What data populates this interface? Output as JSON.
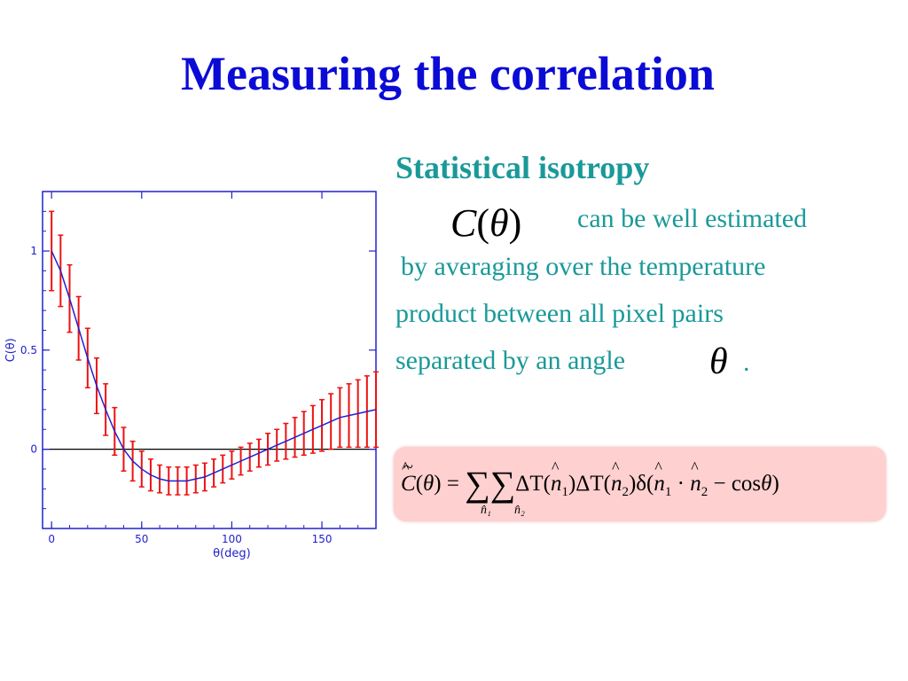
{
  "slide": {
    "title": "Measuring the correlation",
    "heading": "Statistical isotropy",
    "lines": [
      "can be well estimated",
      "by averaging over the temperature",
      "product between all pixel pairs",
      "separated by an angle"
    ],
    "period": ".",
    "c_theta": {
      "c": "C",
      "open": "(",
      "theta": "θ",
      "close": ")"
    },
    "theta_symbol": "θ",
    "formula": {
      "lhs": "C",
      "tilde": "~",
      "theta": "θ",
      "equals": ") =",
      "sum": "∑",
      "sum_sub_1": "n̂₁",
      "sum_sub_2": "n̂₂",
      "body_1": "ΔT(",
      "n": "n",
      "s1": "1",
      "s2": "2",
      "body_2": ")ΔT(",
      "body_3": ")δ(",
      "dot": " · ",
      "minus_cos": " − cos",
      "end": ")"
    },
    "colors": {
      "title": "#0b0bd6",
      "body_text": "#1a9999",
      "formula_bg": "#ffd0d0",
      "chart_axes": "#2222cc",
      "error_bars": "#ee1111",
      "curve": "#2222cc",
      "zero_line": "#000000"
    }
  },
  "chart_data": {
    "type": "line",
    "xlabel": "θ(deg)",
    "ylabel": "C(θ)",
    "xlim": [
      -5,
      180
    ],
    "ylim": [
      -0.4,
      1.3
    ],
    "xticks": [
      0,
      50,
      100,
      150
    ],
    "yticks": [
      0,
      0.5,
      1
    ],
    "ytick_labels": [
      "0",
      "0.5",
      "1"
    ],
    "grid": false,
    "reference_line": {
      "y": 0,
      "color": "#000000"
    },
    "series": [
      {
        "style": "line-with-error-bars",
        "x": [
          0,
          5,
          10,
          15,
          20,
          25,
          30,
          35,
          40,
          45,
          50,
          55,
          60,
          65,
          70,
          75,
          80,
          85,
          90,
          95,
          100,
          105,
          110,
          115,
          120,
          125,
          130,
          135,
          140,
          145,
          150,
          155,
          160,
          165,
          170,
          175,
          180
        ],
        "y": [
          1.0,
          0.9,
          0.76,
          0.61,
          0.46,
          0.32,
          0.2,
          0.09,
          0.0,
          -0.06,
          -0.1,
          -0.13,
          -0.15,
          -0.16,
          -0.16,
          -0.16,
          -0.15,
          -0.14,
          -0.12,
          -0.1,
          -0.08,
          -0.06,
          -0.04,
          -0.02,
          0.0,
          0.02,
          0.04,
          0.06,
          0.08,
          0.1,
          0.12,
          0.14,
          0.16,
          0.17,
          0.18,
          0.19,
          0.2
        ],
        "err": [
          0.2,
          0.18,
          0.17,
          0.16,
          0.15,
          0.14,
          0.13,
          0.12,
          0.11,
          0.1,
          0.09,
          0.08,
          0.07,
          0.07,
          0.07,
          0.07,
          0.07,
          0.07,
          0.07,
          0.07,
          0.07,
          0.07,
          0.07,
          0.07,
          0.08,
          0.08,
          0.09,
          0.1,
          0.11,
          0.12,
          0.13,
          0.14,
          0.15,
          0.16,
          0.17,
          0.18,
          0.19
        ]
      }
    ]
  }
}
